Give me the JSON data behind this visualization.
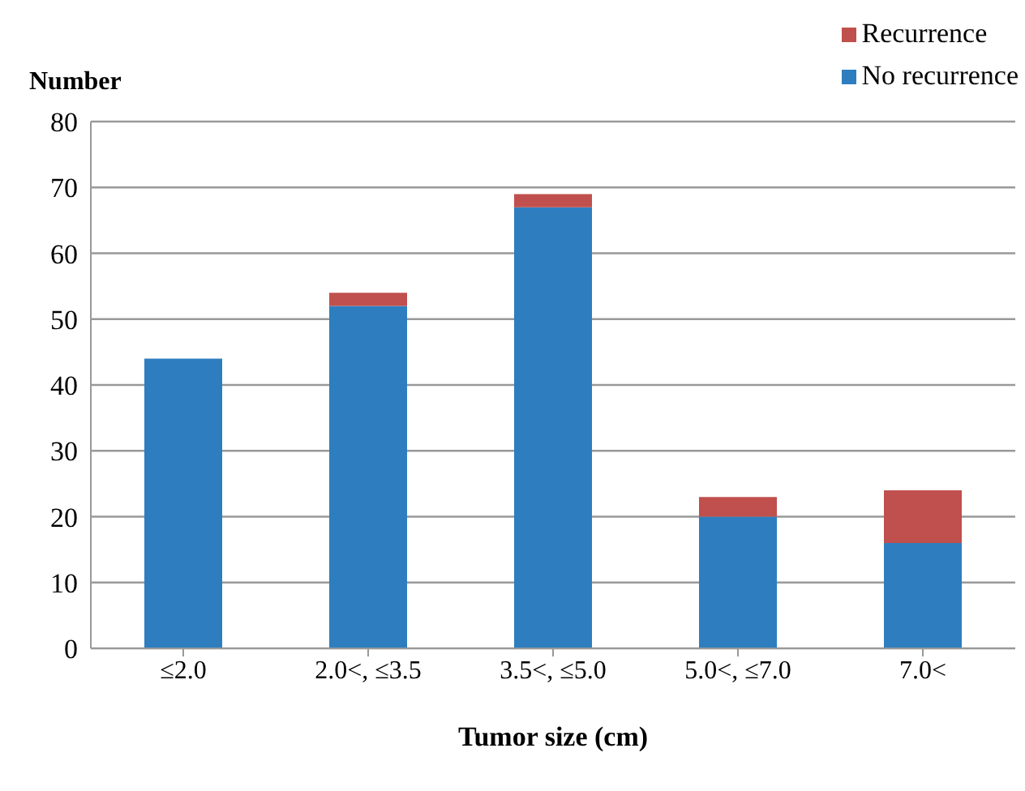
{
  "chart_data": {
    "type": "bar",
    "stacked": true,
    "ylabel": "Number",
    "xlabel": "Tumor size (cm)",
    "categories": [
      "≤2.0",
      "2.0<, ≤3.5",
      "3.5<, ≤5.0",
      "5.0<, ≤7.0",
      "7.0<"
    ],
    "series": [
      {
        "name": "No recurrence",
        "color": "#2e7ebf",
        "values": [
          44,
          52,
          67,
          20,
          16
        ]
      },
      {
        "name": "Recurrence",
        "color": "#c0504d",
        "values": [
          0,
          2,
          2,
          3,
          8
        ]
      }
    ],
    "ylim": [
      0,
      80
    ],
    "yticks": [
      0,
      10,
      20,
      30,
      40,
      50,
      60,
      70,
      80
    ],
    "grid": "y",
    "legend": "top right"
  }
}
